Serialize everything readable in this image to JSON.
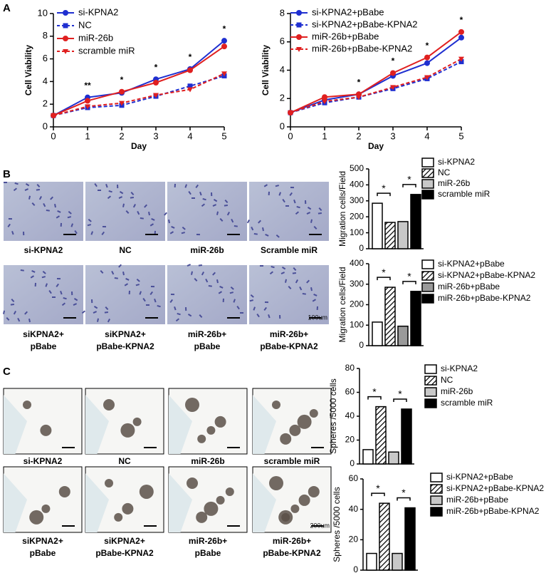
{
  "panels": [
    "A",
    "B",
    "C"
  ],
  "chart_data": [
    {
      "type": "line",
      "x": [
        0,
        1,
        2,
        3,
        4,
        5
      ],
      "xlim": [
        0,
        5
      ],
      "xticks": [
        0,
        1,
        2,
        3,
        4,
        5
      ],
      "ylim": [
        0,
        10
      ],
      "yticks": [
        0,
        2,
        4,
        6,
        8,
        10
      ],
      "x_label": "Day",
      "y_label": "Cell Viability",
      "series": [
        {
          "name": "si-KPNA2",
          "color": "#1f2fd0",
          "dash": false,
          "marker": "circle",
          "values": [
            1,
            2.6,
            3.0,
            4.2,
            5.1,
            7.6
          ]
        },
        {
          "name": "NC",
          "color": "#1f2fd0",
          "dash": true,
          "marker": "square",
          "values": [
            1,
            1.7,
            1.9,
            2.7,
            3.6,
            4.5
          ]
        },
        {
          "name": "miR-26b",
          "color": "#e02020",
          "dash": false,
          "marker": "circle",
          "values": [
            1,
            2.3,
            3.1,
            3.9,
            5.0,
            7.1
          ]
        },
        {
          "name": "scramble miR",
          "color": "#e02020",
          "dash": true,
          "marker": "triangle",
          "values": [
            1,
            1.8,
            2.1,
            2.8,
            3.3,
            4.7
          ]
        }
      ],
      "annotations": [
        {
          "x": 1,
          "label": "**"
        },
        {
          "x": 2,
          "label": "*"
        },
        {
          "x": 3,
          "label": "*"
        },
        {
          "x": 4,
          "label": "*"
        },
        {
          "x": 5,
          "label": "*"
        }
      ]
    },
    {
      "type": "line",
      "x": [
        0,
        1,
        2,
        3,
        4,
        5
      ],
      "xlim": [
        0,
        5
      ],
      "xticks": [
        0,
        1,
        2,
        3,
        4,
        5
      ],
      "ylim": [
        0,
        8
      ],
      "yticks": [
        0,
        2,
        4,
        6,
        8
      ],
      "x_label": "Day",
      "y_label": "Cell Viability",
      "series": [
        {
          "name": "si-KPNA2+pBabe",
          "color": "#1f2fd0",
          "dash": false,
          "marker": "circle",
          "values": [
            1,
            1.9,
            2.3,
            3.6,
            4.5,
            6.3
          ]
        },
        {
          "name": "si-KPNA2+pBabe-KPNA2",
          "color": "#1f2fd0",
          "dash": true,
          "marker": "square",
          "values": [
            1,
            1.7,
            2.1,
            2.7,
            3.4,
            4.6
          ]
        },
        {
          "name": "miR-26b+pBabe",
          "color": "#e02020",
          "dash": false,
          "marker": "circle",
          "values": [
            1,
            2.1,
            2.3,
            3.8,
            4.9,
            6.7
          ]
        },
        {
          "name": "miR-26b+pBabe-KPNA2",
          "color": "#e02020",
          "dash": true,
          "marker": "triangle",
          "values": [
            1,
            1.8,
            2.1,
            2.8,
            3.5,
            4.8
          ]
        }
      ],
      "annotations": [
        {
          "x": 2,
          "label": "*"
        },
        {
          "x": 3,
          "label": "*"
        },
        {
          "x": 4,
          "label": "*"
        },
        {
          "x": 5,
          "label": "*"
        }
      ]
    },
    {
      "type": "bar",
      "y_label": "Migration cells/Field",
      "ylim": [
        0,
        500
      ],
      "yticks": [
        0,
        100,
        200,
        300,
        400,
        500
      ],
      "categories": [
        "si-KPNA2",
        "NC",
        "miR-26b",
        "scramble miR"
      ],
      "values": [
        285,
        165,
        170,
        340
      ],
      "colors": [
        "#ffffff",
        "hatch",
        "#c8c8c8",
        "#000000"
      ],
      "annotations": [
        "*",
        "*"
      ]
    },
    {
      "type": "bar",
      "y_label": "Migration cells/Field",
      "ylim": [
        0,
        400
      ],
      "yticks": [
        0,
        100,
        200,
        300,
        400
      ],
      "categories": [
        "si-KPNA2+pBabe",
        "si-KPNA2+pBabe-KPNA2",
        "miR-26b+pBabe",
        "miR-26b+pBabe-KPNA2"
      ],
      "values": [
        115,
        285,
        95,
        265
      ],
      "colors": [
        "#ffffff",
        "hatch",
        "#9a9a9a",
        "#000000"
      ],
      "annotations": [
        "*",
        "*"
      ]
    },
    {
      "type": "bar",
      "y_label": "Spheres /5000 cells",
      "ylim": [
        0,
        80
      ],
      "yticks": [
        0,
        20,
        40,
        60,
        80
      ],
      "categories": [
        "si-KPNA2",
        "NC",
        "miR-26b",
        "scramble miR"
      ],
      "values": [
        12,
        48,
        10,
        46
      ],
      "colors": [
        "#ffffff",
        "hatch",
        "#c8c8c8",
        "#000000"
      ],
      "annotations": [
        "*",
        "*"
      ]
    },
    {
      "type": "bar",
      "y_label": "Spheres /5000 cells",
      "ylim": [
        0,
        60
      ],
      "yticks": [
        0,
        20,
        40,
        60
      ],
      "categories": [
        "si-KPNA2+pBabe",
        "si-KPNA2+pBabe-KPNA2",
        "miR-26b+pBabe",
        "miR-26b+pBabe-KPNA2"
      ],
      "values": [
        11,
        44,
        11,
        41
      ],
      "colors": [
        "#ffffff",
        "hatch",
        "#c8c8c8",
        "#000000"
      ],
      "annotations": [
        "*",
        "*"
      ]
    }
  ],
  "micrographs": {
    "B": {
      "labels": [
        [
          "si-KPNA2"
        ],
        [
          "NC"
        ],
        [
          "miR-26b"
        ],
        [
          "Scramble miR"
        ],
        [
          "siKPNA2+",
          "pBabe"
        ],
        [
          "siKPNA2+",
          "pBabe-KPNA2"
        ],
        [
          "miR-26b+",
          "pBabe"
        ],
        [
          "miR-26b+",
          "pBabe-KPNA2"
        ]
      ],
      "scale_bar": "100um"
    },
    "C": {
      "labels": [
        [
          "si-KPNA2"
        ],
        [
          "NC"
        ],
        [
          "miR-26b"
        ],
        [
          "scramble miR"
        ],
        [
          "siKPNA2+",
          "pBabe"
        ],
        [
          "siKPNA2+",
          "pBabe-KPNA2"
        ],
        [
          "miR-26b+",
          "pBabe"
        ],
        [
          "miR-26b+",
          "pBabe-KPNA2"
        ]
      ],
      "scale_bar": "200um"
    }
  }
}
